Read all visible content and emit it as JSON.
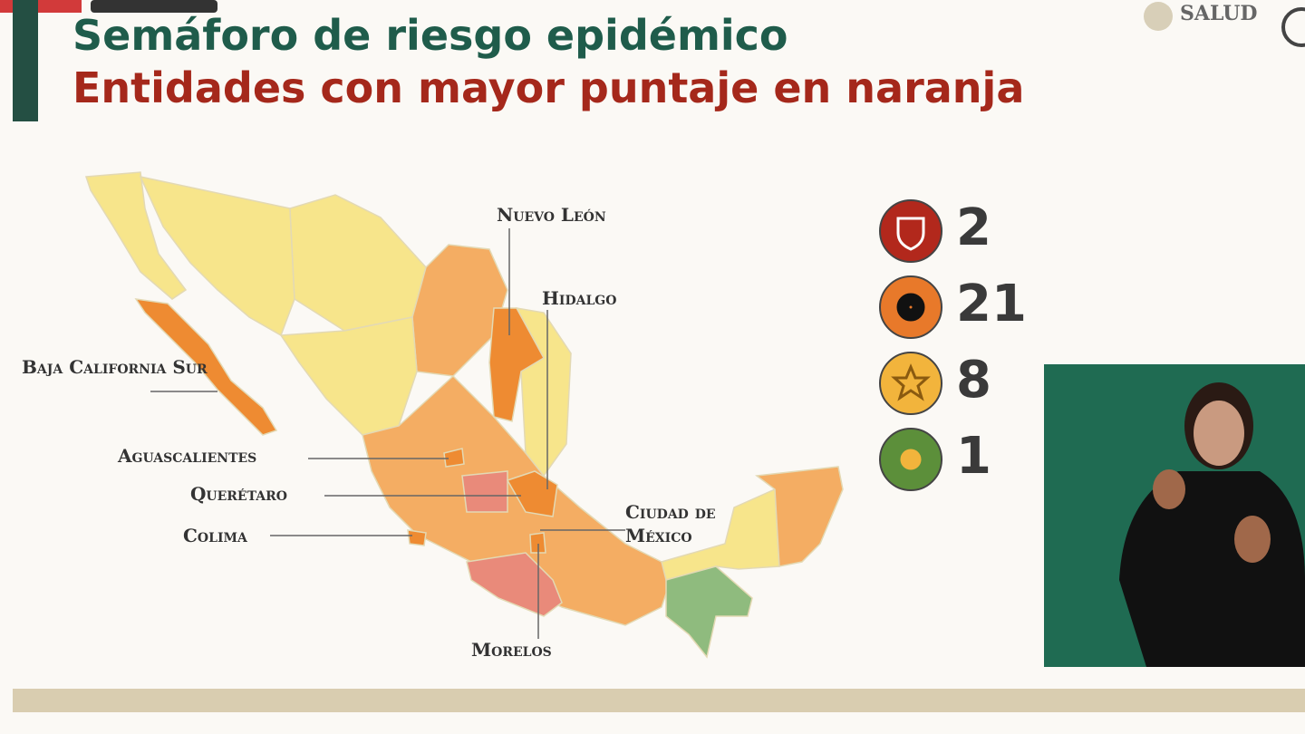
{
  "header": {
    "title": "Semáforo de riesgo epidémico",
    "subtitle": "Entidades con mayor puntaje en naranja"
  },
  "logo": {
    "text": "SALUD"
  },
  "map": {
    "labels": [
      "Nuevo León",
      "Hidalgo",
      "Baja California Sur",
      "Aguascalientes",
      "Querétaro",
      "Colima",
      "Ciudad de México",
      "Morelos"
    ]
  },
  "legend": [
    {
      "color": "#b2281c",
      "count": 2
    },
    {
      "color": "#e8792a",
      "count": 21
    },
    {
      "color": "#f2b43c",
      "count": 8
    },
    {
      "color": "#5c8f3a",
      "count": 1
    }
  ]
}
